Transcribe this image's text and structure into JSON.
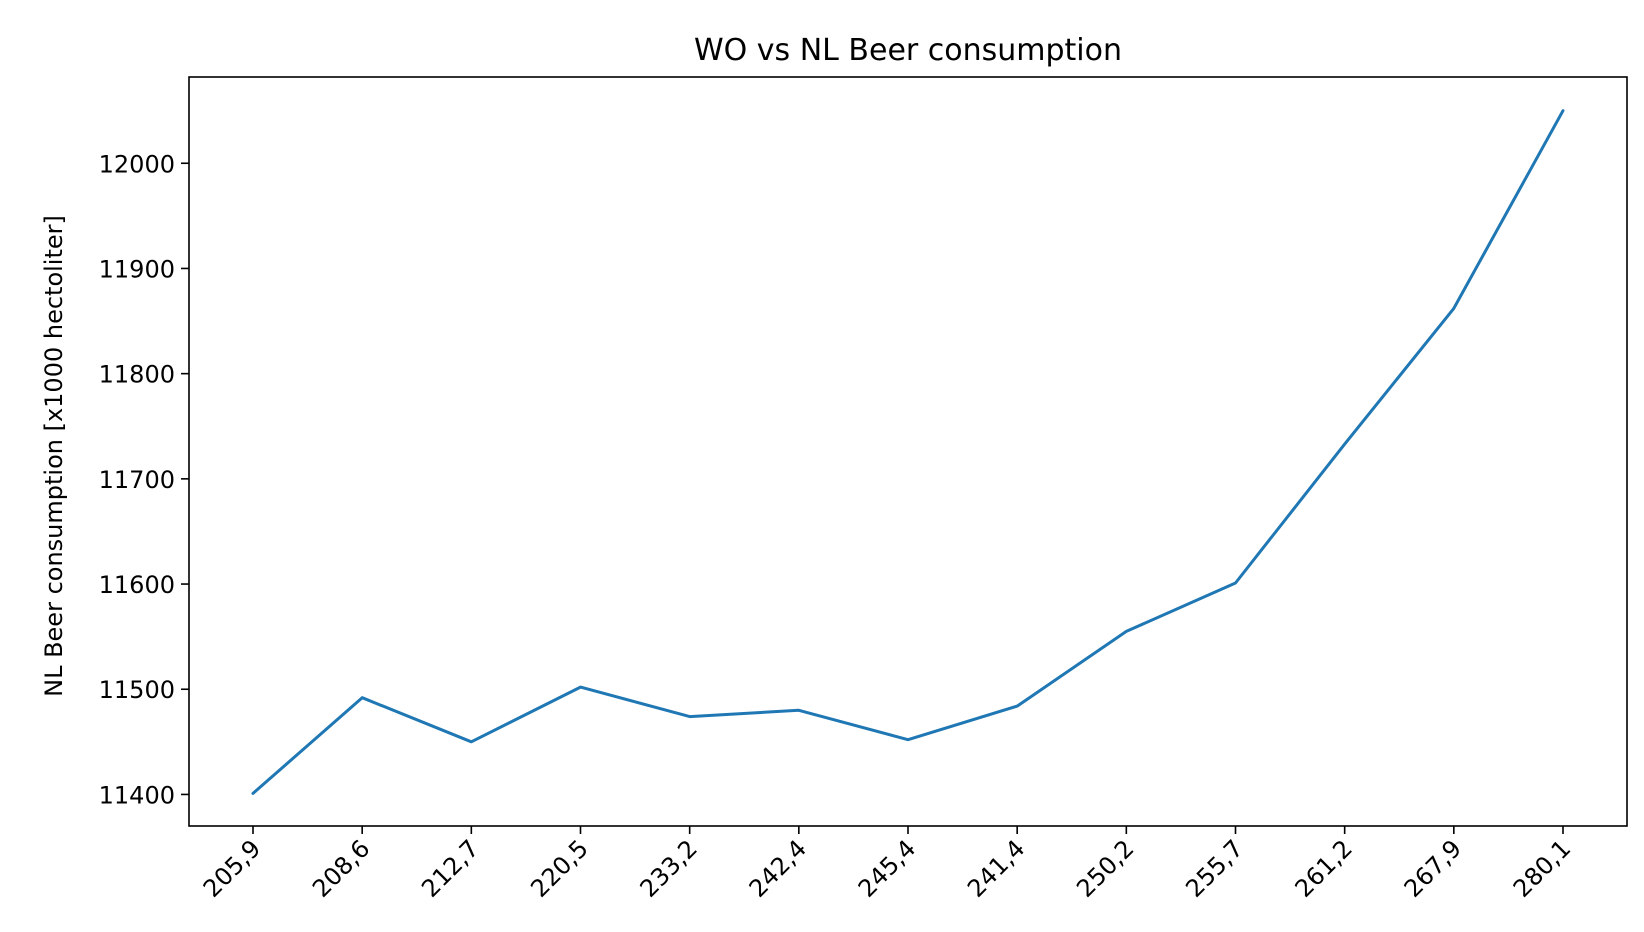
{
  "chart_data": {
    "type": "line",
    "title": "WO vs NL Beer consumption",
    "xlabel": "",
    "ylabel": "NL Beer consumption [x1000 hectoliter]",
    "categories": [
      "205,9",
      "208,6",
      "212,7",
      "220,5",
      "233,2",
      "242,4",
      "245,4",
      "241,4",
      "250,2",
      "255,7",
      "261,2",
      "267,9",
      "280,1"
    ],
    "series": [
      {
        "values": [
          11401,
          11492,
          11450,
          11502,
          11474,
          11480,
          11452,
          11484,
          11555,
          11601,
          11733,
          11862,
          12050
        ],
        "color": "#1f77b4"
      }
    ],
    "y_ticks": [
      11400,
      11500,
      11600,
      11700,
      11800,
      11900,
      12000
    ],
    "ylim": [
      11370,
      12082
    ],
    "grid": false,
    "legend": "none"
  }
}
